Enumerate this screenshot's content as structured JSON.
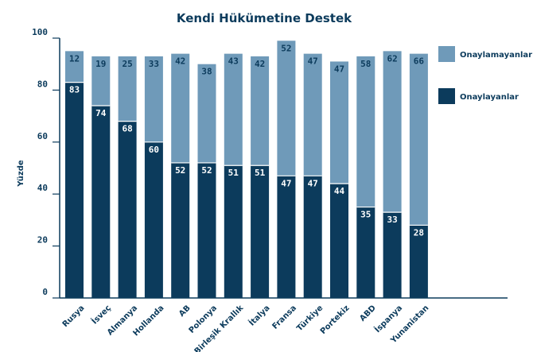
{
  "chart_data": {
    "type": "bar",
    "stacked": true,
    "title": "Kendi Hükümetine Destek",
    "ylabel": "Yüzde",
    "xlabel": "",
    "ylim": [
      0,
      100
    ],
    "yticks": [
      "0",
      "20",
      "40",
      "60",
      "80",
      "100"
    ],
    "grid": false,
    "legend_position": "right",
    "categories": [
      "Rusya",
      "İsveç",
      "Almanya",
      "Hollanda",
      "AB",
      "Polonya",
      "Birleşik Krallık",
      "İtalya",
      "Fransa",
      "Türkiye",
      "Portekiz",
      "ABD",
      "İspanya",
      "Yunanistan"
    ],
    "series": [
      {
        "name": "Onaylayanlar",
        "color": "#0c3b5c",
        "values": [
          83,
          74,
          68,
          60,
          52,
          52,
          51,
          51,
          47,
          47,
          44,
          35,
          33,
          28
        ]
      },
      {
        "name": "Onaylamayanlar",
        "color": "#6f9ab9",
        "values": [
          12,
          19,
          25,
          33,
          42,
          38,
          43,
          42,
          52,
          47,
          47,
          58,
          62,
          66
        ]
      }
    ],
    "colors": {
      "axis": "#0c3b5c",
      "text": "#0c3b5c",
      "label_on_dark": "#ffffff",
      "label_on_light": "#0c3b5c"
    }
  }
}
